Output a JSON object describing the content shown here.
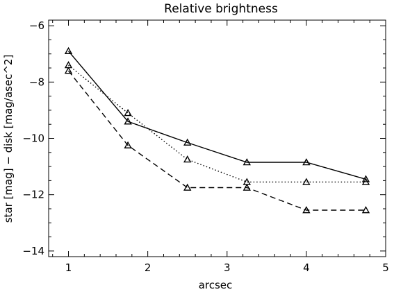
{
  "chart_data": {
    "type": "line",
    "title": "Relative brightness",
    "xlabel": "arcsec",
    "ylabel": "star [mag] − disk [mag/asec^2]",
    "xlim": [
      0.75,
      5.0
    ],
    "ylim": [
      -14.2,
      -5.8
    ],
    "xticks": [
      1,
      2,
      3,
      4,
      5
    ],
    "xtick_labels": [
      "1",
      "2",
      "3",
      "4",
      "5"
    ],
    "yticks": [
      -14,
      -12,
      -10,
      -8,
      -6
    ],
    "ytick_labels": [
      "−14",
      "−12",
      "−10",
      "−8",
      "−6"
    ],
    "grid": false,
    "marker": "triangle",
    "series": [
      {
        "style": "solid",
        "x": [
          1.0,
          1.75,
          2.5,
          3.25,
          4.0,
          4.75
        ],
        "y": [
          -6.9,
          -9.4,
          -10.15,
          -10.85,
          -10.85,
          -11.45
        ]
      },
      {
        "style": "dotted",
        "x": [
          1.0,
          1.75,
          2.5,
          3.25,
          4.0,
          4.75
        ],
        "y": [
          -7.4,
          -9.1,
          -10.75,
          -11.55,
          -11.55,
          -11.55
        ]
      },
      {
        "style": "dashed",
        "x": [
          1.0,
          1.75,
          2.5,
          3.25,
          4.0,
          4.75
        ],
        "y": [
          -7.6,
          -10.25,
          -11.75,
          -11.75,
          -12.55,
          -12.55
        ]
      }
    ]
  }
}
